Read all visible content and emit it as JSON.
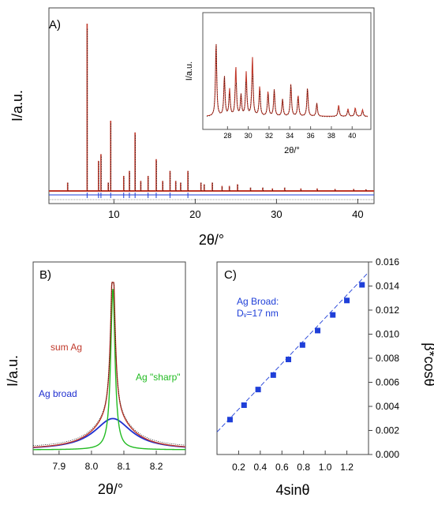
{
  "figure": {
    "panels": [
      {
        "id": "A",
        "label": "A)"
      },
      {
        "id": "B",
        "label": "B)"
      },
      {
        "id": "C",
        "label": "C)"
      }
    ]
  },
  "colors": {
    "observed": "#000000",
    "calculated": "#c0392b",
    "difference": "#1f3fd8",
    "sharp": "#22bb22",
    "broad": "#1f2fd0",
    "points": "#1f3fd8"
  },
  "chart_data": [
    {
      "id": "A",
      "type": "line",
      "title": "",
      "xlabel": "2θ/°",
      "ylabel": "I/a.u.",
      "xlim": [
        2,
        42
      ],
      "xticks": [
        10,
        20,
        30,
        40
      ],
      "series": [
        {
          "role": "observed-and-calculated-pattern",
          "peaks": [
            {
              "x": 4.3,
              "h": 0.05
            },
            {
              "x": 6.7,
              "h": 1.0
            },
            {
              "x": 8.1,
              "h": 0.18
            },
            {
              "x": 8.4,
              "h": 0.22
            },
            {
              "x": 9.3,
              "h": 0.05
            },
            {
              "x": 9.6,
              "h": 0.42
            },
            {
              "x": 11.2,
              "h": 0.09
            },
            {
              "x": 11.9,
              "h": 0.12
            },
            {
              "x": 12.6,
              "h": 0.35
            },
            {
              "x": 13.3,
              "h": 0.06
            },
            {
              "x": 14.2,
              "h": 0.09
            },
            {
              "x": 15.2,
              "h": 0.19
            },
            {
              "x": 16.0,
              "h": 0.06
            },
            {
              "x": 16.9,
              "h": 0.12
            },
            {
              "x": 17.6,
              "h": 0.06
            },
            {
              "x": 18.2,
              "h": 0.05
            },
            {
              "x": 19.1,
              "h": 0.12
            },
            {
              "x": 20.7,
              "h": 0.05
            },
            {
              "x": 21.1,
              "h": 0.04
            },
            {
              "x": 22.1,
              "h": 0.05
            },
            {
              "x": 23.3,
              "h": 0.03
            },
            {
              "x": 24.2,
              "h": 0.03
            },
            {
              "x": 25.2,
              "h": 0.04
            },
            {
              "x": 26.8,
              "h": 0.02
            },
            {
              "x": 28.3,
              "h": 0.02
            },
            {
              "x": 29.5,
              "h": 0.015
            },
            {
              "x": 31.0,
              "h": 0.02
            },
            {
              "x": 33.0,
              "h": 0.015
            },
            {
              "x": 35.0,
              "h": 0.015
            },
            {
              "x": 37.2,
              "h": 0.012
            },
            {
              "x": 39.5,
              "h": 0.012
            },
            {
              "x": 41.0,
              "h": 0.01
            }
          ]
        }
      ],
      "inset": {
        "xlabel": "2θ/°",
        "ylabel": "I/a.u.",
        "xlim": [
          26,
          41.5
        ],
        "xticks": [
          28,
          30,
          32,
          34,
          36,
          38,
          40
        ],
        "peaks": [
          {
            "x": 26.9,
            "h": 0.78
          },
          {
            "x": 27.7,
            "h": 0.42
          },
          {
            "x": 28.2,
            "h": 0.28
          },
          {
            "x": 28.8,
            "h": 0.52
          },
          {
            "x": 29.3,
            "h": 0.22
          },
          {
            "x": 29.8,
            "h": 0.46
          },
          {
            "x": 30.4,
            "h": 0.62
          },
          {
            "x": 31.1,
            "h": 0.31
          },
          {
            "x": 31.9,
            "h": 0.26
          },
          {
            "x": 32.5,
            "h": 0.28
          },
          {
            "x": 33.3,
            "h": 0.18
          },
          {
            "x": 34.1,
            "h": 0.34
          },
          {
            "x": 34.8,
            "h": 0.22
          },
          {
            "x": 35.7,
            "h": 0.3
          },
          {
            "x": 36.6,
            "h": 0.14
          },
          {
            "x": 38.7,
            "h": 0.12
          },
          {
            "x": 39.6,
            "h": 0.08
          },
          {
            "x": 40.3,
            "h": 0.09
          },
          {
            "x": 41.0,
            "h": 0.07
          }
        ]
      }
    },
    {
      "id": "B",
      "type": "line",
      "title": "",
      "xlabel": "2θ/°",
      "ylabel": "I/a.u.",
      "xlim": [
        7.82,
        8.29
      ],
      "xticks": [
        7.9,
        8.0,
        8.1,
        8.2
      ],
      "series": [
        {
          "name": "sum Ag",
          "center": 8.066,
          "sharp_height": 1.0,
          "sharp_width": 0.008,
          "broad_height": 0.19,
          "broad_width": 0.07
        },
        {
          "name": "Ag broad",
          "center": 8.066,
          "height": 0.19,
          "width": 0.07
        },
        {
          "name": "Ag \"sharp\"",
          "center": 8.066,
          "height": 0.98,
          "width": 0.008
        }
      ]
    },
    {
      "id": "C",
      "type": "scatter",
      "title": "",
      "xlabel": "4sinθ",
      "ylabel": "β*cosθ",
      "xlim": [
        0,
        1.4
      ],
      "ylim": [
        0,
        0.016
      ],
      "xticks": [
        0.2,
        0.4,
        0.6,
        0.8,
        1.0,
        1.2
      ],
      "yticks": [
        0.0,
        0.002,
        0.004,
        0.006,
        0.008,
        0.01,
        0.012,
        0.014,
        0.016
      ],
      "annotation": [
        "Ag Broad:",
        "Dᵥ=17 nm"
      ],
      "x": [
        0.12,
        0.25,
        0.38,
        0.52,
        0.66,
        0.79,
        0.93,
        1.07,
        1.2,
        1.34
      ],
      "y": [
        0.0029,
        0.0041,
        0.0054,
        0.0066,
        0.0079,
        0.0091,
        0.0103,
        0.0116,
        0.0128,
        0.0141
      ],
      "fit": {
        "slope": 0.00948,
        "intercept": 0.00187
      }
    }
  ]
}
